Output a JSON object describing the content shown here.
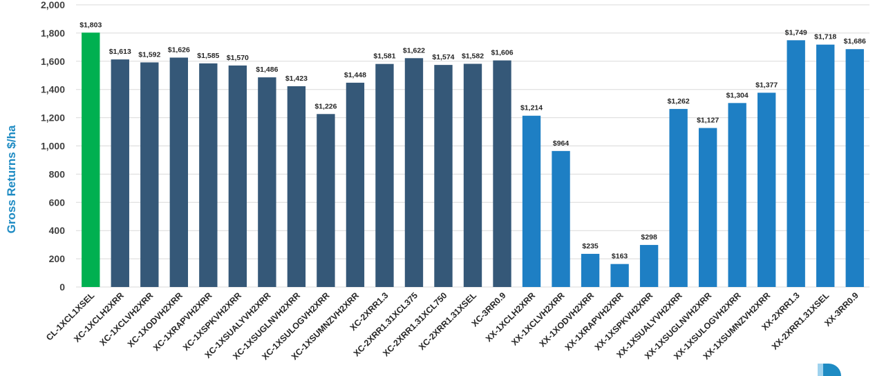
{
  "chart_data": {
    "type": "bar",
    "title": "",
    "xlabel": "",
    "ylabel": "Gross Returns $/ha",
    "ylim": [
      0,
      2000
    ],
    "yticks": [
      "0",
      "200",
      "400",
      "600",
      "800",
      "1,000",
      "1,200",
      "1,400",
      "1,600",
      "1,800",
      "2,000"
    ],
    "grid": true,
    "legend": "none",
    "categories": [
      "CL-1XCL1XSEL",
      "XC-1XCLH2XRR",
      "XC-1XCLVH2XRR",
      "XC-1XODVH2XRR",
      "XC-1XRAPVH2XRR",
      "XC-1XSPKVH2XRR",
      "XC-1XSUALYVH2XRR",
      "XC-1XSUGLNVH2XRR",
      "XC-1XSULOGVH2XRR",
      "XC-1XSUMNZVH2XRR",
      "XC-2XRR1.3",
      "XC-2XRR1.31XCL375",
      "XC-2XRR1.31XCL750",
      "XC-2XRR1.31XSEL",
      "XC-3RR0.9",
      "XX-1XCLH2XRR",
      "XX-1XCLVH2XRR",
      "XX-1XODVH2XRR",
      "XX-1XRAPVH2XRR",
      "XX-1XSPKVH2XRR",
      "XX-1XSUALYVH2XRR",
      "XX-1XSUGLNVH2XRR",
      "XX-1XSULOGVH2XRR",
      "XX-1XSUMNZVH2XRR",
      "XX-2XRR1.3",
      "XX-2XRR1.31XSEL",
      "XX-3RR0.9"
    ],
    "values": [
      1803,
      1613,
      1592,
      1626,
      1585,
      1570,
      1486,
      1423,
      1226,
      1448,
      1581,
      1622,
      1574,
      1582,
      1606,
      1214,
      964,
      235,
      163,
      298,
      1262,
      1127,
      1304,
      1377,
      1749,
      1718,
      1686
    ],
    "data_labels": [
      "$1,803",
      "$1,613",
      "$1,592",
      "$1,626",
      "$1,585",
      "$1,570",
      "$1,486",
      "$1,423",
      "$1,226",
      "$1,448",
      "$1,581",
      "$1,622",
      "$1,574",
      "$1,582",
      "$1,606",
      "$1,214",
      "$964",
      "$235",
      "$163",
      "$298",
      "$1,262",
      "$1,127",
      "$1,304",
      "$1,377",
      "$1,749",
      "$1,718",
      "$1,686"
    ],
    "colors": {
      "CL": "#00b050",
      "XC": "#355878",
      "XX": "#1e7fc4",
      "ylabel": "#1e8bc3",
      "logo_light": "#9fd2ee",
      "logo_dark": "#1e8bc3"
    }
  }
}
